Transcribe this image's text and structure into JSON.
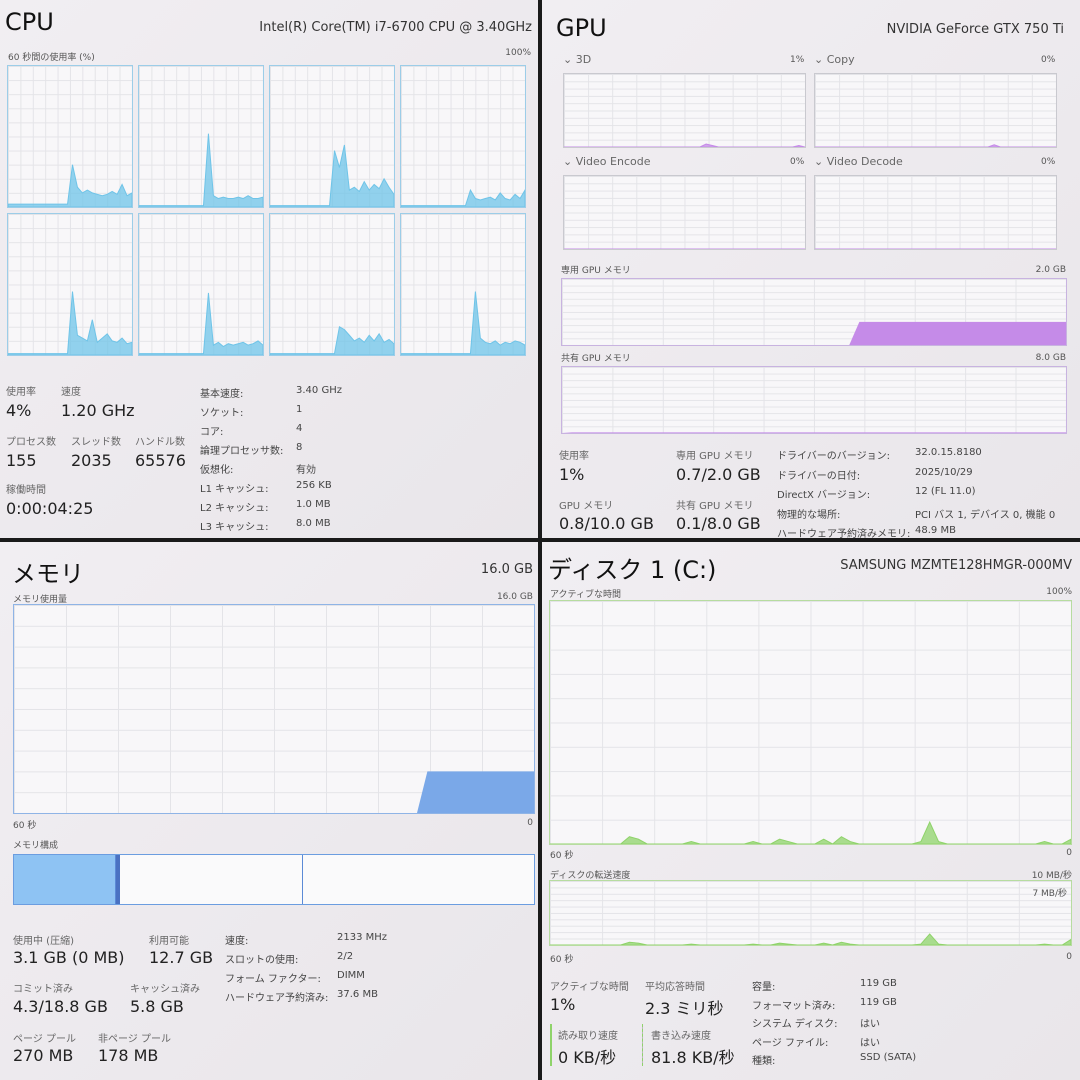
{
  "cpu": {
    "title": "CPU",
    "model": "Intel(R) Core(TM) i7-6700 CPU @ 3.40GHz",
    "graph_label": "60 秒間の使用率 (%)",
    "graph_max": "100%",
    "color": "#6fc4e8",
    "cores": [
      [
        2,
        2,
        2,
        2,
        2,
        2,
        2,
        2,
        2,
        2,
        2,
        2,
        2,
        30,
        14,
        10,
        12,
        10,
        9,
        8,
        9,
        11,
        9,
        16,
        8,
        10
      ],
      [
        1,
        1,
        1,
        1,
        1,
        1,
        1,
        1,
        1,
        1,
        1,
        1,
        1,
        1,
        52,
        8,
        6,
        7,
        6,
        6,
        7,
        6,
        8,
        6,
        6,
        7
      ],
      [
        1,
        1,
        1,
        1,
        1,
        1,
        1,
        1,
        1,
        1,
        1,
        1,
        1,
        40,
        28,
        44,
        12,
        14,
        11,
        18,
        12,
        16,
        13,
        20,
        14,
        9
      ],
      [
        1,
        1,
        1,
        1,
        1,
        1,
        1,
        1,
        1,
        1,
        1,
        1,
        1,
        1,
        12,
        6,
        5,
        6,
        7,
        5,
        10,
        6,
        5,
        9,
        6,
        12
      ],
      [
        1,
        1,
        1,
        1,
        1,
        1,
        1,
        1,
        1,
        1,
        1,
        1,
        1,
        45,
        14,
        12,
        10,
        25,
        9,
        12,
        15,
        10,
        9,
        12,
        8,
        9
      ],
      [
        1,
        1,
        1,
        1,
        1,
        1,
        1,
        1,
        1,
        1,
        1,
        1,
        1,
        1,
        44,
        7,
        9,
        6,
        8,
        7,
        8,
        9,
        7,
        8,
        10,
        7
      ],
      [
        1,
        1,
        1,
        1,
        1,
        1,
        1,
        1,
        1,
        1,
        1,
        1,
        1,
        1,
        20,
        18,
        14,
        10,
        12,
        9,
        14,
        10,
        15,
        9,
        11,
        8
      ],
      [
        1,
        1,
        1,
        1,
        1,
        1,
        1,
        1,
        1,
        1,
        1,
        1,
        1,
        1,
        1,
        45,
        12,
        9,
        8,
        10,
        7,
        9,
        8,
        10,
        9,
        7
      ]
    ],
    "stats": {
      "util_label": "使用率",
      "util": "4%",
      "speed_label": "速度",
      "speed": "1.20 GHz",
      "proc_label": "プロセス数",
      "proc": "155",
      "thread_label": "スレッド数",
      "thread": "2035",
      "handle_label": "ハンドル数",
      "handle": "65576",
      "uptime_label": "稼働時間",
      "uptime": "0:00:04:25"
    },
    "details": [
      [
        "基本速度:",
        "3.40 GHz"
      ],
      [
        "ソケット:",
        "1"
      ],
      [
        "コア:",
        "4"
      ],
      [
        "論理プロセッサ数:",
        "8"
      ],
      [
        "仮想化:",
        "有効"
      ],
      [
        "L1 キャッシュ:",
        "256 KB"
      ],
      [
        "L2 キャッシュ:",
        "1.0 MB"
      ],
      [
        "L3 キャッシュ:",
        "8.0 MB"
      ]
    ]
  },
  "gpu": {
    "title": "GPU",
    "model": "NVIDIA GeForce GTX 750 Ti",
    "color": "#c58be8",
    "engines": [
      {
        "name": "3D",
        "value": "1%"
      },
      {
        "name": "Copy",
        "value": "0%"
      },
      {
        "name": "Video Encode",
        "value": "0%"
      },
      {
        "name": "Video Decode",
        "value": "0%"
      }
    ],
    "dedicated_label": "専用 GPU メモリ",
    "dedicated_max": "2.0 GB",
    "dedicated_level": 0.35,
    "shared_label": "共有 GPU メモリ",
    "shared_max": "8.0 GB",
    "shared_level": 0.01,
    "stats": {
      "util_label": "使用率",
      "util": "1%",
      "ded_label": "専用 GPU メモリ",
      "ded": "0.7/2.0 GB",
      "mem_label": "GPU メモリ",
      "mem": "0.8/10.0 GB",
      "sh_label": "共有 GPU メモリ",
      "sh": "0.1/8.0 GB"
    },
    "details": [
      [
        "ドライバーのバージョン:",
        "32.0.15.8180"
      ],
      [
        "ドライバーの日付:",
        "2025/10/29"
      ],
      [
        "DirectX バージョン:",
        "12 (FL 11.0)"
      ],
      [
        "物理的な場所:",
        "PCI バス 1, デバイス 0, 機能 0"
      ],
      [
        "ハードウェア予約済みメモリ:",
        "48.9 MB"
      ]
    ]
  },
  "memory": {
    "title": "メモリ",
    "total": "16.0 GB",
    "graph_label": "メモリ使用量",
    "graph_max": "16.0 GB",
    "time": "60 秒",
    "min": "0",
    "level": 0.2,
    "color": "#7aa8e8",
    "composition_label": "メモリ構成",
    "stats": {
      "inuse_label": "使用中 (圧縮)",
      "inuse": "3.1 GB (0 MB)",
      "avail_label": "利用可能",
      "avail": "12.7 GB",
      "commit_label": "コミット済み",
      "commit": "4.3/18.8 GB",
      "cached_label": "キャッシュ済み",
      "cached": "5.8 GB",
      "paged_label": "ページ プール",
      "paged": "270 MB",
      "nonpaged_label": "非ページ プール",
      "nonpaged": "178 MB"
    },
    "details": [
      [
        "速度:",
        "2133 MHz"
      ],
      [
        "スロットの使用:",
        "2/2"
      ],
      [
        "フォーム ファクター:",
        "DIMM"
      ],
      [
        "ハードウェア予約済み:",
        "37.6 MB"
      ]
    ]
  },
  "disk": {
    "title": "ディスク 1 (C:)",
    "model": "SAMSUNG MZMTE128HMGR-000MV",
    "color": "#8fd36a",
    "active_label": "アクティブな時間",
    "active_max": "100%",
    "time": "60 秒",
    "min": "0",
    "active": [
      0,
      0,
      0,
      0,
      0,
      0,
      0,
      0,
      0,
      3,
      2,
      0,
      0,
      0,
      0,
      0,
      1,
      0,
      0,
      0,
      0,
      0,
      0,
      1,
      0,
      0,
      2,
      1,
      0,
      0,
      0,
      2,
      0,
      3,
      1,
      0,
      0,
      0,
      0,
      0,
      0,
      0,
      1,
      9,
      1,
      0,
      0,
      0,
      0,
      0,
      0,
      0,
      0,
      0,
      0,
      0,
      1,
      0,
      0,
      2
    ],
    "transfer_label": "ディスクの転送速度",
    "transfer_max": "10 MB/秒",
    "transfer_sub": "7 MB/秒",
    "transfer": [
      0,
      0,
      0,
      0,
      0,
      0,
      0,
      0,
      0,
      3,
      2,
      0,
      0,
      0,
      0,
      0,
      1,
      0,
      0,
      0,
      0,
      0,
      0,
      1,
      0,
      0,
      2,
      1,
      0,
      0,
      0,
      2,
      0,
      3,
      1,
      0,
      0,
      0,
      0,
      0,
      0,
      0,
      1,
      12,
      1,
      0,
      0,
      0,
      0,
      0,
      0,
      0,
      0,
      0,
      0,
      0,
      1,
      0,
      0,
      6
    ],
    "stats": {
      "active_label": "アクティブな時間",
      "active": "1%",
      "resp_label": "平均応答時間",
      "resp": "2.3 ミリ秒",
      "read_label": "読み取り速度",
      "read": "0 KB/秒",
      "write_label": "書き込み速度",
      "write": "81.8 KB/秒"
    },
    "details": [
      [
        "容量:",
        "119 GB"
      ],
      [
        "フォーマット済み:",
        "119 GB"
      ],
      [
        "システム ディスク:",
        "はい"
      ],
      [
        "ページ ファイル:",
        "はい"
      ],
      [
        "種類:",
        "SSD (SATA)"
      ]
    ]
  }
}
